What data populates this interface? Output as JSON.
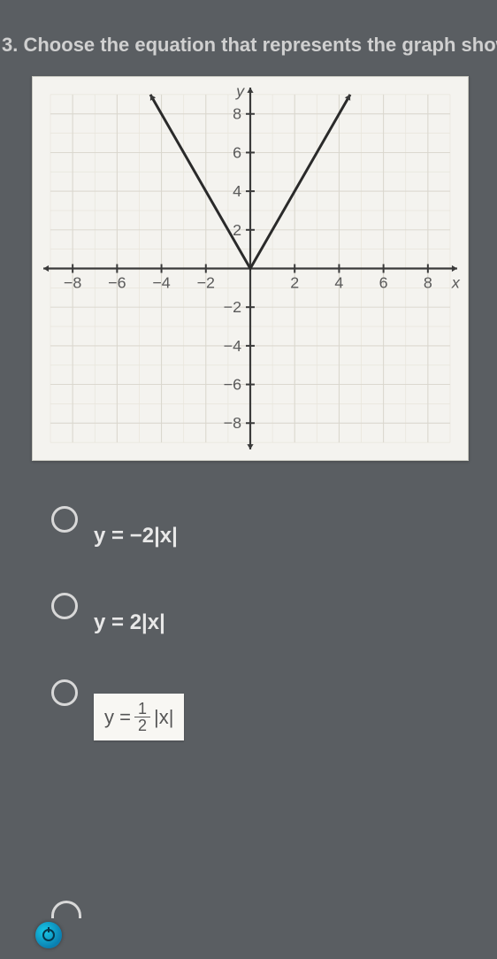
{
  "question": {
    "number": "3.",
    "text": "Choose the equation that represents the graph shown"
  },
  "graph": {
    "type": "line",
    "background_color": "#f4f3ef",
    "grid_color": "#d9d6cd",
    "grid_color_fine": "#e8e5db",
    "axis_color": "#3a3a3a",
    "axis_fontsize": 18,
    "axis_label_color": "#5a5a5a",
    "x_label": "x",
    "y_label": "y",
    "xlim": [
      -9,
      9
    ],
    "ylim": [
      -9,
      9
    ],
    "xticks": [
      -8,
      -6,
      -4,
      -2,
      2,
      4,
      6,
      8
    ],
    "yticks": [
      -8,
      -6,
      -4,
      -2,
      2,
      4,
      6,
      8
    ],
    "series": [
      {
        "points": [
          [
            -4.5,
            9
          ],
          [
            0,
            0
          ],
          [
            4.5,
            9
          ]
        ],
        "color": "#2a2a2a",
        "width": 3,
        "arrows": true
      }
    ]
  },
  "options": [
    {
      "id": "opt-a",
      "label_plain": "y = −2|x|",
      "boxed": false
    },
    {
      "id": "opt-b",
      "label_plain": "y = 2|x|",
      "boxed": false
    },
    {
      "id": "opt-c",
      "label_plain": "y = 1/2 |x|",
      "boxed": true,
      "frac_num": "1",
      "frac_den": "2",
      "prefix": "y = ",
      "suffix": " |x|"
    }
  ],
  "icons": {
    "clock": "clock-icon"
  },
  "colors": {
    "page_bg": "#5a5e62",
    "text": "#e8e8e8",
    "radio_border": "#d8d8d8",
    "box_bg": "#f8f7f3",
    "box_text": "#555555"
  }
}
